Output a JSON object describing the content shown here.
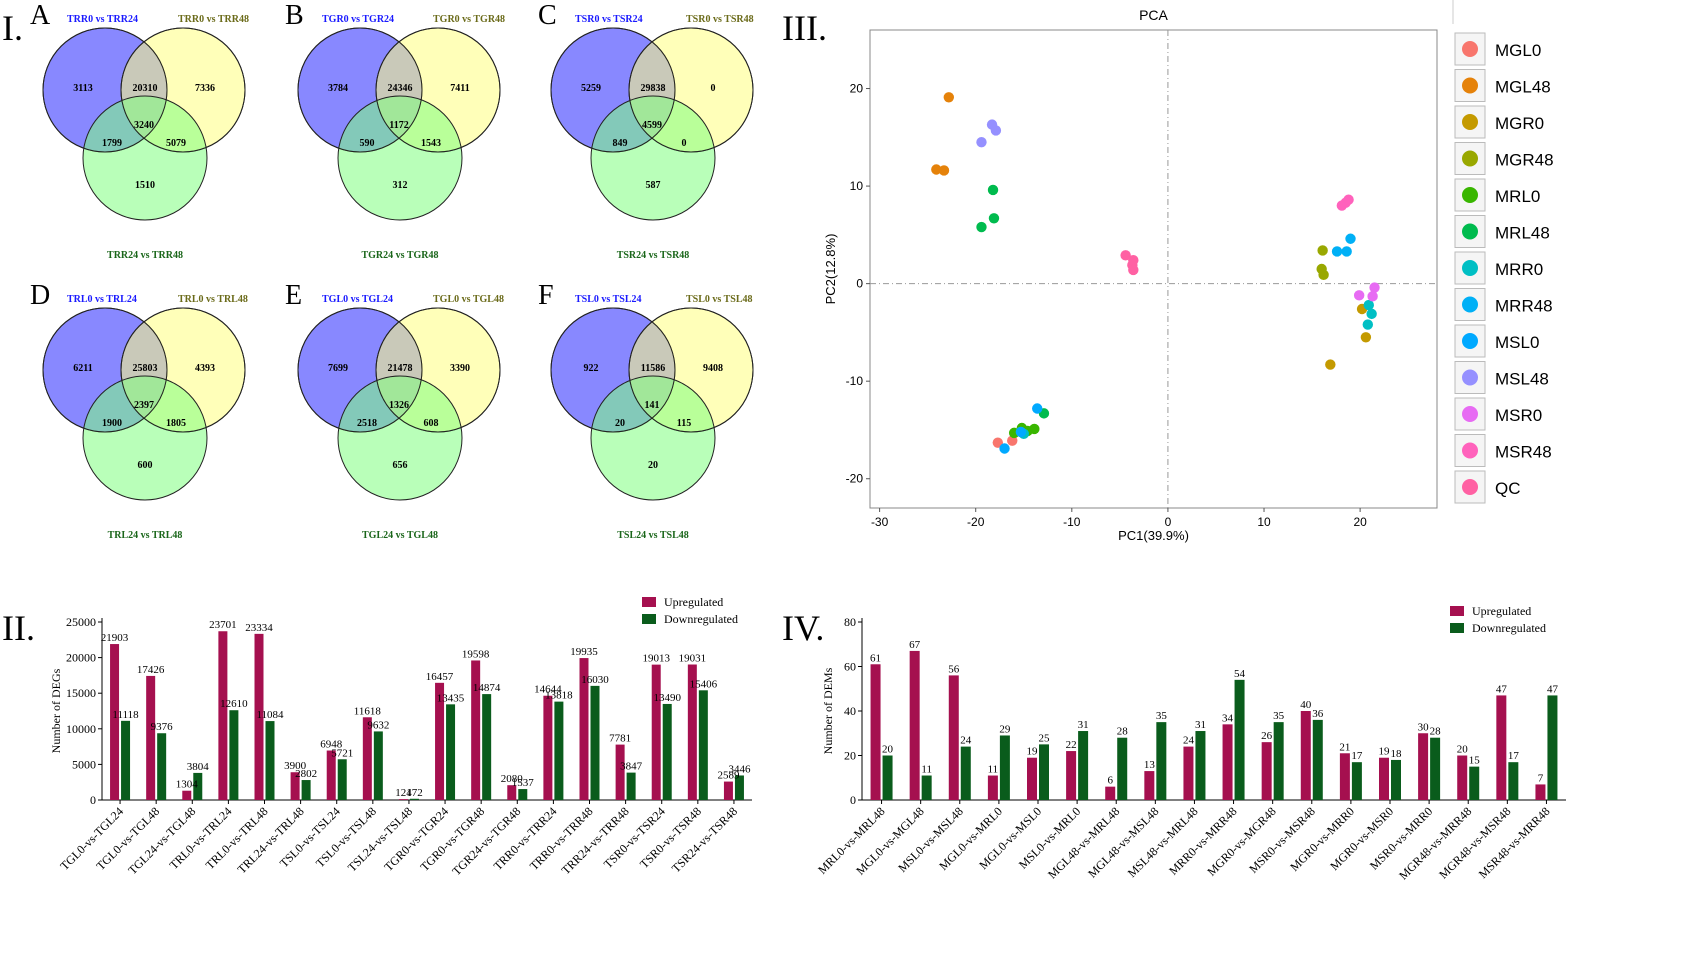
{
  "figure": {
    "panel_labels": {
      "I": "I.",
      "II": "II.",
      "III": "III.",
      "IV": "IV."
    },
    "venn_panels": [
      {
        "letter": "A",
        "label_a": "TRR0 vs TRR24",
        "label_b": "TRR0 vs TRR48",
        "label_c": "TRR24 vs TRR48",
        "only_a": "3113",
        "only_b": "7336",
        "only_c": "1510",
        "ab": "20310",
        "ac": "1799",
        "bc": "5079",
        "abc": "3240"
      },
      {
        "letter": "B",
        "label_a": "TGR0 vs TGR24",
        "label_b": "TGR0 vs TGR48",
        "label_c": "TGR24 vs TGR48",
        "only_a": "3784",
        "only_b": "7411",
        "only_c": "312",
        "ab": "24346",
        "ac": "590",
        "bc": "1543",
        "abc": "1172"
      },
      {
        "letter": "C",
        "label_a": "TSR0 vs TSR24",
        "label_b": "TSR0 vs TSR48",
        "label_c": "TSR24 vs TSR48",
        "only_a": "5259",
        "only_b": "0",
        "only_c": "587",
        "ab": "29838",
        "ac": "849",
        "bc": "0",
        "abc": "4599"
      },
      {
        "letter": "D",
        "label_a": "TRL0 vs TRL24",
        "label_b": "TRL0 vs TRL48",
        "label_c": "TRL24 vs TRL48",
        "only_a": "6211",
        "only_b": "4393",
        "only_c": "600",
        "ab": "25803",
        "ac": "1900",
        "bc": "1805",
        "abc": "2397"
      },
      {
        "letter": "E",
        "label_a": "TGL0 vs TGL24",
        "label_b": "TGL0 vs TGL48",
        "label_c": "TGL24 vs TGL48",
        "only_a": "7699",
        "only_b": "3390",
        "only_c": "656",
        "ab": "21478",
        "ac": "2518",
        "bc": "608",
        "abc": "1326"
      },
      {
        "letter": "F",
        "label_a": "TSL0 vs TSL24",
        "label_b": "TSL0 vs TSL48",
        "label_c": "TSL24 vs TSL48",
        "only_a": "922",
        "only_b": "9408",
        "only_c": "20",
        "ab": "11586",
        "ac": "20",
        "bc": "115",
        "abc": "141"
      }
    ]
  },
  "colors": {
    "venn_a": "#7b7bff",
    "venn_b": "#ffff80",
    "venn_c": "#80ff80",
    "label_a": "#1a1aff",
    "label_b": "#6b6b1a",
    "label_c": "#1a661a",
    "up": "#a5104f",
    "down": "#0a5c1c"
  },
  "chart_data": [
    {
      "type": "bar",
      "panel": "II.",
      "ylabel": "Number of DEGs",
      "xlabel": "",
      "ylim": [
        0,
        25000
      ],
      "yticks": [
        0,
        5000,
        10000,
        15000,
        20000,
        25000
      ],
      "legend": "top-right",
      "categories": [
        "TGL0-vs-TGL24",
        "TGL0-vs-TGL48",
        "TGL24-vs-TGL48",
        "TRL0-vs-TRL24",
        "TRL0-vs-TRL48",
        "TRL24-vs-TRL48",
        "TSL0-vs-TSL24",
        "TSL0-vs-TSL48",
        "TSL24-vs-TSL48",
        "TGR0-vs-TGR24",
        "TGR0-vs-TGR48",
        "TGR24-vs-TGR48",
        "TRR0-vs-TRR24",
        "TRR0-vs-TRR48",
        "TRR24-vs-TRR48",
        "TSR0-vs-TSR24",
        "TSR0-vs-TSR48",
        "TSR24-vs-TSR48"
      ],
      "series": [
        {
          "name": "Upregulated",
          "values": [
            21903,
            17426,
            1304,
            23701,
            23334,
            3900,
            6948,
            11618,
            124,
            16457,
            19598,
            2080,
            14644,
            19935,
            7781,
            19013,
            19031,
            2589
          ]
        },
        {
          "name": "Downregulated",
          "values": [
            11118,
            9376,
            3804,
            12610,
            11084,
            2802,
            5721,
            9632,
            172,
            13435,
            14874,
            1537,
            13818,
            16030,
            3847,
            13490,
            15406,
            3446
          ]
        }
      ]
    },
    {
      "type": "bar",
      "panel": "IV.",
      "ylabel": "Number of DEMs",
      "xlabel": "",
      "ylim": [
        0,
        80
      ],
      "yticks": [
        0,
        20,
        40,
        60,
        80
      ],
      "legend": "top-right",
      "categories": [
        "MRL0-vs-MRL48",
        "MGL0-vs-MGL48",
        "MSL0-vs-MSL48",
        "MGL0-vs-MRL0",
        "MGL0-vs-MSL0",
        "MSL0-vs-MRL0",
        "MGL48-vs-MRL48",
        "MGL48-vs-MSL48",
        "MSL48-vs-MRL48",
        "MRR0-vs-MRR48",
        "MGR0-vs-MGR48",
        "MSR0-vs-MSR48",
        "MGR0-vs-MRR0",
        "MGR0-vs-MSR0",
        "MSR0-vs-MRR0",
        "MGR48-vs-MRR48",
        "MGR48-vs-MSR48",
        "MSR48-vs-MRR48"
      ],
      "series": [
        {
          "name": "Upregulated",
          "values": [
            61,
            67,
            56,
            11,
            19,
            22,
            6,
            13,
            24,
            34,
            26,
            40,
            21,
            19,
            30,
            20,
            47,
            7
          ]
        },
        {
          "name": "Downregulated",
          "values": [
            20,
            11,
            24,
            29,
            25,
            31,
            28,
            35,
            31,
            54,
            35,
            36,
            17,
            18,
            28,
            15,
            17,
            47
          ]
        }
      ]
    },
    {
      "type": "scatter",
      "panel": "III.",
      "title": "PCA",
      "xlabel": "PC1(39.9%)",
      "ylabel": "PC2(12.8%)",
      "xlim": [
        -31,
        28
      ],
      "ylim": [
        -23,
        26
      ],
      "xticks": [
        -30,
        -20,
        -10,
        0,
        10,
        20
      ],
      "yticks": [
        -20,
        -10,
        0,
        10,
        20
      ],
      "legend": "right",
      "series": [
        {
          "name": "MGL0",
          "color": "#f8766d",
          "points": [
            [
              -16.2,
              -16.1
            ],
            [
              -17.7,
              -16.3
            ]
          ]
        },
        {
          "name": "MGL48",
          "color": "#e5820a",
          "points": [
            [
              -22.8,
              19.1
            ],
            [
              -24.1,
              11.7
            ],
            [
              -23.3,
              11.6
            ]
          ]
        },
        {
          "name": "MGR0",
          "color": "#c49a00",
          "points": [
            [
              20.2,
              -2.6
            ],
            [
              20.6,
              -5.5
            ],
            [
              16.9,
              -8.3
            ]
          ]
        },
        {
          "name": "MGR48",
          "color": "#99a800",
          "points": [
            [
              16.1,
              3.4
            ],
            [
              16.0,
              1.5
            ],
            [
              16.2,
              0.9
            ]
          ]
        },
        {
          "name": "MRL0",
          "color": "#39b600",
          "points": [
            [
              -15.2,
              -14.8
            ],
            [
              -14.6,
              -15.1
            ],
            [
              -13.9,
              -14.9
            ],
            [
              -16.0,
              -15.3
            ]
          ]
        },
        {
          "name": "MRL48",
          "color": "#00bb4e",
          "points": [
            [
              -18.2,
              9.6
            ],
            [
              -18.1,
              6.7
            ],
            [
              -19.4,
              5.8
            ],
            [
              -12.9,
              -13.3
            ]
          ]
        },
        {
          "name": "MRR0",
          "color": "#00bfc4",
          "points": [
            [
              21.2,
              -3.1
            ],
            [
              20.8,
              -4.2
            ],
            [
              20.9,
              -2.2
            ],
            [
              -15.0,
              -15.4
            ]
          ]
        },
        {
          "name": "MRR48",
          "color": "#00b0f6",
          "points": [
            [
              19.0,
              4.6
            ],
            [
              18.6,
              3.3
            ],
            [
              17.6,
              3.3
            ]
          ]
        },
        {
          "name": "MSL0",
          "color": "#00a9ff",
          "points": [
            [
              -13.6,
              -12.8
            ],
            [
              -15.3,
              -15.2
            ],
            [
              -17.0,
              -16.9
            ]
          ]
        },
        {
          "name": "MSL48",
          "color": "#9590ff",
          "points": [
            [
              -18.3,
              16.3
            ],
            [
              -17.9,
              15.7
            ],
            [
              -19.4,
              14.5
            ]
          ]
        },
        {
          "name": "MSR0",
          "color": "#e76bf3",
          "points": [
            [
              21.5,
              -0.4
            ],
            [
              21.3,
              -1.3
            ],
            [
              19.9,
              -1.2
            ]
          ]
        },
        {
          "name": "MSR48",
          "color": "#ff62bc",
          "points": [
            [
              18.5,
              8.3
            ],
            [
              18.1,
              8.0
            ],
            [
              18.8,
              8.6
            ]
          ]
        },
        {
          "name": "QC",
          "color": "#ff61a3",
          "points": [
            [
              -4.4,
              2.9
            ],
            [
              -3.6,
              2.4
            ],
            [
              -3.7,
              1.9
            ],
            [
              -3.6,
              1.4
            ]
          ]
        }
      ]
    }
  ]
}
